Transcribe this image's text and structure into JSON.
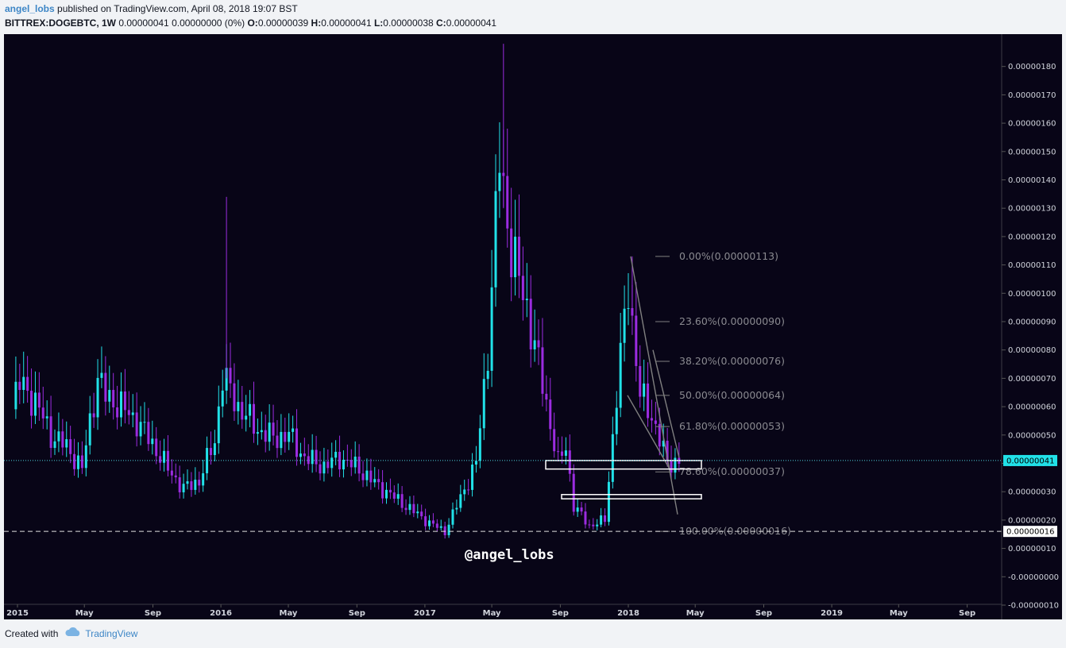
{
  "header": {
    "author": "angel_lobs",
    "published_text": " published on TradingView.com, April 08, 2018 19:07 BST",
    "symbol": "BITTREX:DOGEBTC, 1W",
    "change": " 0.00000041 0.00000000 (0%) ",
    "o_label": "O:",
    "o_value": "0.00000039 ",
    "h_label": "H:",
    "h_value": "0.00000041 ",
    "l_label": "L:",
    "l_value": "0.00000038 ",
    "c_label": "C:",
    "c_value": "0.00000041"
  },
  "footer": {
    "created_with": "Created with",
    "brand": "TradingView"
  },
  "watermark": "@angel_lobs",
  "colors": {
    "background": "#080517",
    "bull": "#21e1e8",
    "bear": "#9b2ce0",
    "price_line": "#4fd2e0",
    "fib_line": "#808080",
    "axis_text": "#d1d4dc"
  },
  "chart_data": {
    "type": "candlestick",
    "timeframe": "1W",
    "ylim": [
      -1e-07,
      1.85e-06
    ],
    "y_ticks": [
      "0.00000180",
      "0.00000170",
      "0.00000160",
      "0.00000150",
      "0.00000140",
      "0.00000130",
      "0.00000120",
      "0.00000110",
      "0.00000100",
      "0.00000090",
      "0.00000080",
      "0.00000070",
      "0.00000060",
      "0.00000050",
      "0.00000040",
      "0.00000030",
      "0.00000020",
      "0.00000010",
      "-0.00000000",
      "-0.00000010"
    ],
    "x_ticks": [
      "2015",
      "May",
      "Sep",
      "2016",
      "May",
      "Sep",
      "2017",
      "May",
      "Sep",
      "2018",
      "May",
      "Sep",
      "2019",
      "May",
      "Sep"
    ],
    "current_price": "0.00000041",
    "level_16": "0.00000016",
    "fib_levels": [
      {
        "label": "0.00%(0.00000113)",
        "value": 1.13e-06
      },
      {
        "label": "23.60%(0.00000090)",
        "value": 9e-07
      },
      {
        "label": "38.20%(0.00000076)",
        "value": 7.6e-07
      },
      {
        "label": "50.00%(0.00000064)",
        "value": 6.4e-07
      },
      {
        "label": "61.80%(0.00000053)",
        "value": 5.3e-07
      },
      {
        "label": "78.60%(0.00000037)",
        "value": 3.7e-07
      },
      {
        "label": "100.00%(0.00000016)",
        "value": 1.6e-07
      }
    ],
    "approx_weekly_closes": [
      {
        "date": "2014-12-22",
        "close": 6.2e-07
      },
      {
        "date": "2015-01-05",
        "close": 6.8e-07
      },
      {
        "date": "2015-02-02",
        "close": 6.2e-07
      },
      {
        "date": "2015-03-02",
        "close": 5e-07
      },
      {
        "date": "2015-03-30",
        "close": 4.6e-07
      },
      {
        "date": "2015-04-27",
        "close": 3.8e-07
      },
      {
        "date": "2015-05-11",
        "close": 5.5e-07
      },
      {
        "date": "2015-05-25",
        "close": 7e-07
      },
      {
        "date": "2015-06-08",
        "close": 6.4e-07
      },
      {
        "date": "2015-07-06",
        "close": 6e-07
      },
      {
        "date": "2015-08-03",
        "close": 5.5e-07
      },
      {
        "date": "2015-08-31",
        "close": 4.7e-07
      },
      {
        "date": "2015-09-28",
        "close": 3.8e-07
      },
      {
        "date": "2015-10-26",
        "close": 3.1e-07
      },
      {
        "date": "2015-11-23",
        "close": 3.4e-07
      },
      {
        "date": "2015-12-21",
        "close": 4.8e-07
      },
      {
        "date": "2016-01-04",
        "close": 7.1e-07
      },
      {
        "date": "2016-02-01",
        "close": 6e-07
      },
      {
        "date": "2016-03-07",
        "close": 5.2e-07
      },
      {
        "date": "2016-04-04",
        "close": 4.9e-07
      },
      {
        "date": "2016-05-02",
        "close": 5e-07
      },
      {
        "date": "2016-05-30",
        "close": 4.2e-07
      },
      {
        "date": "2016-07-04",
        "close": 3.9e-07
      },
      {
        "date": "2016-08-01",
        "close": 4.2e-07
      },
      {
        "date": "2016-09-05",
        "close": 3.8e-07
      },
      {
        "date": "2016-10-03",
        "close": 3.3e-07
      },
      {
        "date": "2016-11-07",
        "close": 2.8e-07
      },
      {
        "date": "2016-12-05",
        "close": 2.4e-07
      },
      {
        "date": "2017-01-09",
        "close": 1.9e-07
      },
      {
        "date": "2017-02-06",
        "close": 1.6e-07
      },
      {
        "date": "2017-03-06",
        "close": 2.8e-07
      },
      {
        "date": "2017-04-03",
        "close": 4e-07
      },
      {
        "date": "2017-04-24",
        "close": 8e-07
      },
      {
        "date": "2017-05-15",
        "close": 1.48e-06
      },
      {
        "date": "2017-06-05",
        "close": 1.15e-06
      },
      {
        "date": "2017-07-03",
        "close": 9.5e-07
      },
      {
        "date": "2017-07-31",
        "close": 6.8e-07
      },
      {
        "date": "2017-08-28",
        "close": 4e-07
      },
      {
        "date": "2017-09-11",
        "close": 4.6e-07
      },
      {
        "date": "2017-09-25",
        "close": 2.5e-07
      },
      {
        "date": "2017-10-23",
        "close": 1.8e-07
      },
      {
        "date": "2017-11-20",
        "close": 2e-07
      },
      {
        "date": "2017-12-11",
        "close": 6.4e-07
      },
      {
        "date": "2018-01-01",
        "close": 1.03e-06
      },
      {
        "date": "2018-01-22",
        "close": 6.4e-07
      },
      {
        "date": "2018-02-12",
        "close": 5.7e-07
      },
      {
        "date": "2018-03-12",
        "close": 4e-07
      },
      {
        "date": "2018-04-02",
        "close": 4.1e-07
      }
    ]
  }
}
